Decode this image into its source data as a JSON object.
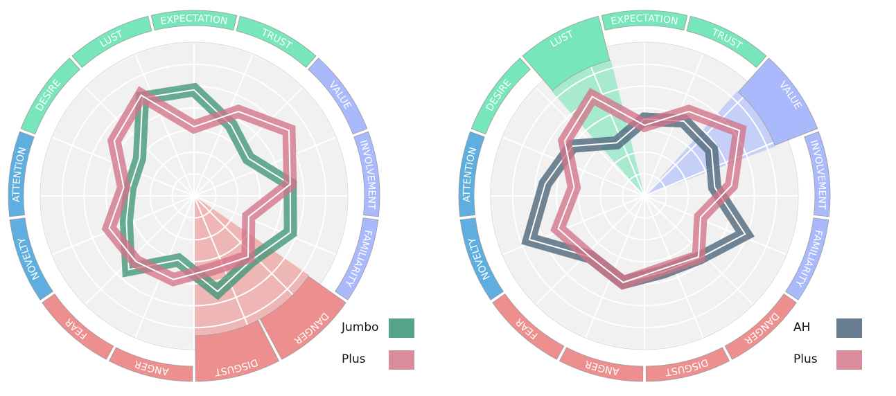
{
  "chart_data": [
    {
      "type": "radar",
      "categories": [
        "EXPECTATION",
        "TRUST",
        "VALUE",
        "INVOLVEMENT",
        "FAMILIARITY",
        "DANGER",
        "DISGUST",
        "ANGER",
        "FEAR",
        "NOVELTY",
        "ATTENTION",
        "DESIRE",
        "LUST"
      ],
      "category_colors": [
        "#77e6bb",
        "#77e6bb",
        "#aab9fb",
        "#aab9fb",
        "#aab9fb",
        "#ee8f8f",
        "#ee8f8f",
        "#ee8f8f",
        "#ee8f8f",
        "#5faee0",
        "#5faee0",
        "#77e6bb",
        "#77e6bb"
      ],
      "highlighted": [
        "DANGER",
        "DISGUST"
      ],
      "range": [
        0,
        1
      ],
      "series": [
        {
          "name": "Jumbo",
          "color": "#3f9677",
          "legend_color": "#56a38b",
          "values": [
            0.69,
            0.52,
            0.43,
            0.63,
            0.67,
            0.56,
            0.64,
            0.43,
            0.64,
            0.47,
            0.42,
            0.43,
            0.72
          ]
        },
        {
          "name": "Plus",
          "color": "#d27388",
          "legend_color": "#d98c9c",
          "values": [
            0.45,
            0.62,
            0.75,
            0.63,
            0.38,
            0.53,
            0.49,
            0.56,
            0.57,
            0.59,
            0.46,
            0.63,
            0.74
          ]
        }
      ]
    },
    {
      "type": "radar",
      "categories": [
        "EXPECTATION",
        "TRUST",
        "VALUE",
        "INVOLVEMENT",
        "FAMILIARITY",
        "DANGER",
        "DISGUST",
        "ANGER",
        "FEAR",
        "NOVELTY",
        "ATTENTION",
        "DESIRE",
        "LUST"
      ],
      "category_colors": [
        "#77e6bb",
        "#77e6bb",
        "#aab9fb",
        "#aab9fb",
        "#aab9fb",
        "#ee8f8f",
        "#ee8f8f",
        "#ee8f8f",
        "#ee8f8f",
        "#5faee0",
        "#5faee0",
        "#77e6bb",
        "#77e6bb"
      ],
      "highlighted": [
        "VALUE",
        "LUST"
      ],
      "range": [
        0,
        1
      ],
      "series": [
        {
          "name": "AH",
          "color": "#4a6479",
          "legend_color": "#687d90",
          "values": [
            0.5,
            0.55,
            0.53,
            0.46,
            0.7,
            0.54,
            0.51,
            0.58,
            0.53,
            0.8,
            0.65,
            0.57,
            0.39
          ]
        },
        {
          "name": "Plus",
          "color": "#d27388",
          "legend_color": "#d98c9c",
          "values": [
            0.46,
            0.62,
            0.75,
            0.57,
            0.39,
            0.53,
            0.49,
            0.58,
            0.53,
            0.6,
            0.46,
            0.63,
            0.73
          ]
        }
      ]
    }
  ]
}
